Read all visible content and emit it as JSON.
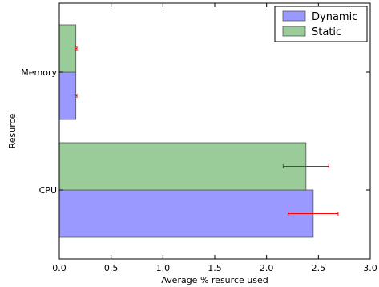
{
  "chart_data": {
    "type": "bar",
    "orientation": "horizontal",
    "title": "",
    "xlabel": "Average % resurce used",
    "ylabel": "Resurce",
    "categories": [
      "CPU",
      "Memory"
    ],
    "xlim": [
      0,
      3.0
    ],
    "xticks": [
      "0.0",
      "0.5",
      "1.0",
      "1.5",
      "2.0",
      "2.5",
      "3.0"
    ],
    "grid": false,
    "legend_position": "top-right",
    "error_bar_color": "#ff0000",
    "series": [
      {
        "name": "Dynamic",
        "color": "#9999ff",
        "values": [
          2.45,
          0.16
        ],
        "errors": [
          0.24,
          0.01
        ]
      },
      {
        "name": "Static",
        "color": "#99cc99",
        "values": [
          2.38,
          0.16
        ],
        "errors": [
          0.22,
          0.01
        ]
      }
    ]
  }
}
